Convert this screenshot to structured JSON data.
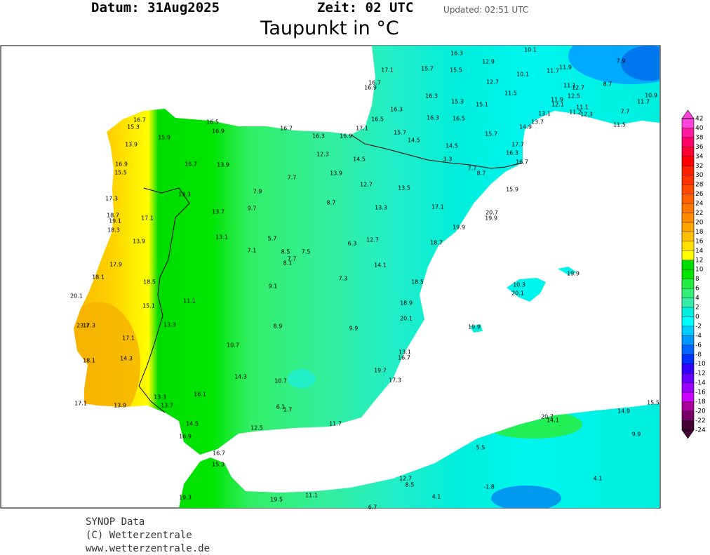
{
  "header": {
    "date": "Datum: 31Aug2025",
    "time": "Zeit: 02 UTC",
    "updated": "Updated: 02:51 UTC",
    "title": "Taupunkt in °C"
  },
  "footer": {
    "source": "SYNOP Data",
    "copyright": "(C) Wetterzentrale",
    "url": "www.wetterzentrale.de"
  },
  "legend": {
    "ticks": [
      42,
      40,
      38,
      36,
      34,
      32,
      30,
      28,
      26,
      24,
      22,
      20,
      18,
      16,
      14,
      12,
      10,
      8,
      6,
      4,
      2,
      0,
      -2,
      -4,
      -6,
      -8,
      -10,
      -12,
      -14,
      -16,
      -18,
      -20,
      -22,
      -24
    ],
    "colors": [
      "#ff44dd",
      "#ff1aa0",
      "#ff0066",
      "#ff0033",
      "#ff0000",
      "#ff2000",
      "#ff3300",
      "#ff4a00",
      "#ff6000",
      "#ff7700",
      "#ff8c00",
      "#ffa500",
      "#ffc000",
      "#ffe000",
      "#ffff00",
      "#00dd00",
      "#00e400",
      "#22ee44",
      "#33ee77",
      "#33eeaa",
      "#00eedd",
      "#00ffff",
      "#00ccff",
      "#0099ff",
      "#0066ff",
      "#0033ff",
      "#3300ff",
      "#6600ff",
      "#9900ff",
      "#cc00ff",
      "#aa0099",
      "#770066",
      "#440033"
    ]
  },
  "stations": [
    "16.3",
    "10.1",
    "12.9",
    "7.9",
    "17.1",
    "15.7",
    "15.5",
    "10.1",
    "11.7",
    "11.9",
    "16.7",
    "16.9",
    "12.7",
    "8.7",
    "11.1",
    "12.7",
    "10.9",
    "11.5",
    "12.5",
    "16.3",
    "15.3",
    "15.1",
    "11.9",
    "12.1",
    "11.7",
    "16.3",
    "11.1",
    "11.2",
    "12.3",
    "7.7",
    "13.1",
    "16.3",
    "16.5",
    "16.5",
    "13.7",
    "11.5",
    "14.9",
    "16.7",
    "15.3",
    "16.5",
    "16.9",
    "16.7",
    "17.1",
    "16.3",
    "16.9",
    "15.7",
    "15.7",
    "14.5",
    "15.9",
    "13.9",
    "17.7",
    "14.5",
    "16.3",
    "12.3",
    "14.5",
    "3.3",
    "16.7",
    "16.9",
    "16.7",
    "13.9",
    "7.7",
    "8.7",
    "15.5",
    "7.7",
    "13.9",
    "12.7",
    "13.5",
    "15.9",
    "7.9",
    "13.3",
    "17.3",
    "8.7",
    "13.3",
    "17.1",
    "9.7",
    "13.7",
    "20.7",
    "18.7",
    "19.1",
    "17.1",
    "19.9",
    "19.9",
    "18.3",
    "13.1",
    "5.7",
    "12.7",
    "13.9",
    "6.3",
    "18.7",
    "7.1",
    "8.5",
    "7.5",
    "7.7",
    "8.1",
    "17.9",
    "14.1",
    "19.9",
    "18.1",
    "7.3",
    "18.5",
    "18.5",
    "9.1",
    "10.3",
    "20.1",
    "20.1",
    "11.1",
    "15.1",
    "18.9",
    "20.1",
    "19.9",
    "23.7",
    "17.3",
    "13.3",
    "8.9",
    "9.9",
    "17.1",
    "10.7",
    "13.1",
    "16.7",
    "14.3",
    "18.1",
    "19.7",
    "14.3",
    "10.7",
    "17.3",
    "16.1",
    "13.3",
    "17.1",
    "13.9",
    "13.7",
    "6.1",
    "1.7",
    "15.5",
    "14.9",
    "20.7",
    "14.1",
    "14.5",
    "12.5",
    "11.7",
    "16.9",
    "9.9",
    "5.5",
    "16.7",
    "15.3",
    "12.7",
    "8.5",
    "4.1",
    "-1.8",
    "19.3",
    "11.1",
    "19.5",
    "4.1",
    "6.7"
  ]
}
